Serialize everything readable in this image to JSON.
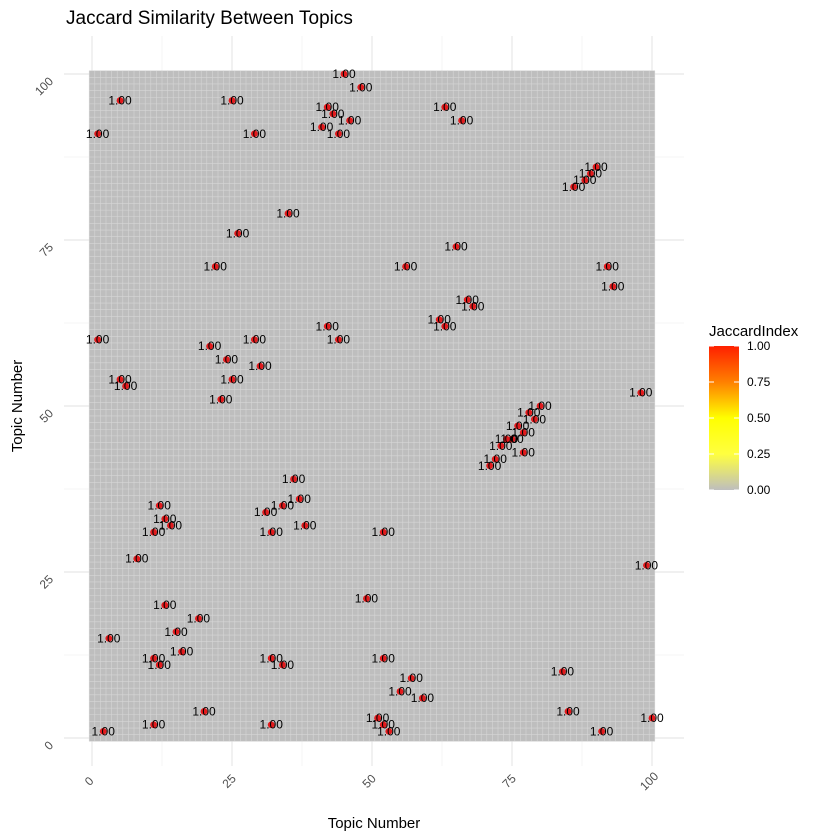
{
  "chart_data": {
    "type": "heatmap",
    "title": "Jaccard Similarity Between Topics",
    "xlabel": "Topic Number",
    "ylabel": "Topic Number",
    "xlim": [
      0,
      100
    ],
    "ylim": [
      0,
      100
    ],
    "x_ticks": [
      "0",
      "25",
      "50",
      "75",
      "100"
    ],
    "y_ticks": [
      "0",
      "25",
      "50",
      "75",
      "100"
    ],
    "grid": true,
    "background_color": "#bebebe",
    "point_color": "#e31a1c",
    "legend": {
      "title": "JaccardIndex",
      "position": "right",
      "labels": [
        "1.00",
        "0.75",
        "0.50",
        "0.25",
        "0.00"
      ],
      "colors": [
        "#ff2000",
        "#ff8000",
        "#ffff00",
        "#ffff40",
        "#bebebe"
      ]
    },
    "points": [
      {
        "x": 45,
        "y": 100,
        "label": "1.00"
      },
      {
        "x": 48,
        "y": 98,
        "label": "1.00"
      },
      {
        "x": 5,
        "y": 96,
        "label": "1.00"
      },
      {
        "x": 25,
        "y": 96,
        "label": "1.00"
      },
      {
        "x": 42,
        "y": 95,
        "label": "1.00"
      },
      {
        "x": 63,
        "y": 95,
        "label": "1.00"
      },
      {
        "x": 43,
        "y": 94,
        "label": "1.00"
      },
      {
        "x": 46,
        "y": 93,
        "label": "1.00"
      },
      {
        "x": 66,
        "y": 93,
        "label": "1.00"
      },
      {
        "x": 41,
        "y": 92,
        "label": "1.00"
      },
      {
        "x": 1,
        "y": 91,
        "label": "1.00"
      },
      {
        "x": 29,
        "y": 91,
        "label": "1.00"
      },
      {
        "x": 44,
        "y": 91,
        "label": "1.00"
      },
      {
        "x": 90,
        "y": 86,
        "label": "1.00"
      },
      {
        "x": 89,
        "y": 85,
        "label": "1.00"
      },
      {
        "x": 88,
        "y": 84,
        "label": "1.00"
      },
      {
        "x": 86,
        "y": 83,
        "label": "1.00"
      },
      {
        "x": 35,
        "y": 79,
        "label": "1.00"
      },
      {
        "x": 26,
        "y": 76,
        "label": "1.00"
      },
      {
        "x": 65,
        "y": 74,
        "label": "1.00"
      },
      {
        "x": 22,
        "y": 71,
        "label": "1.00"
      },
      {
        "x": 56,
        "y": 71,
        "label": "1.00"
      },
      {
        "x": 92,
        "y": 71,
        "label": "1.00"
      },
      {
        "x": 93,
        "y": 68,
        "label": "1.00"
      },
      {
        "x": 67,
        "y": 66,
        "label": "1.00"
      },
      {
        "x": 68,
        "y": 65,
        "label": "1.00"
      },
      {
        "x": 62,
        "y": 63,
        "label": "1.00"
      },
      {
        "x": 63,
        "y": 62,
        "label": "1.00"
      },
      {
        "x": 42,
        "y": 62,
        "label": "1.00"
      },
      {
        "x": 1,
        "y": 60,
        "label": "1.00"
      },
      {
        "x": 29,
        "y": 60,
        "label": "1.00"
      },
      {
        "x": 44,
        "y": 60,
        "label": "1.00"
      },
      {
        "x": 21,
        "y": 59,
        "label": "1.00"
      },
      {
        "x": 24,
        "y": 57,
        "label": "1.00"
      },
      {
        "x": 30,
        "y": 56,
        "label": "1.00"
      },
      {
        "x": 5,
        "y": 54,
        "label": "1.00"
      },
      {
        "x": 25,
        "y": 54,
        "label": "1.00"
      },
      {
        "x": 6,
        "y": 53,
        "label": "1.00"
      },
      {
        "x": 98,
        "y": 52,
        "label": "1.00"
      },
      {
        "x": 23,
        "y": 51,
        "label": "1.00"
      },
      {
        "x": 80,
        "y": 50,
        "label": "1.00"
      },
      {
        "x": 78,
        "y": 49,
        "label": "1.00"
      },
      {
        "x": 79,
        "y": 48,
        "label": "1.00"
      },
      {
        "x": 76,
        "y": 47,
        "label": "1.00"
      },
      {
        "x": 77,
        "y": 46,
        "label": "1.00"
      },
      {
        "x": 74,
        "y": 45,
        "label": "1.00"
      },
      {
        "x": 75,
        "y": 45,
        "label": "1.00"
      },
      {
        "x": 73,
        "y": 44,
        "label": "1.00"
      },
      {
        "x": 77,
        "y": 43,
        "label": "1.00"
      },
      {
        "x": 72,
        "y": 42,
        "label": "1.00"
      },
      {
        "x": 71,
        "y": 41,
        "label": "1.00"
      },
      {
        "x": 36,
        "y": 39,
        "label": "1.00"
      },
      {
        "x": 37,
        "y": 36,
        "label": "1.00"
      },
      {
        "x": 12,
        "y": 35,
        "label": "1.00"
      },
      {
        "x": 34,
        "y": 35,
        "label": "1.00"
      },
      {
        "x": 31,
        "y": 34,
        "label": "1.00"
      },
      {
        "x": 13,
        "y": 33,
        "label": "1.00"
      },
      {
        "x": 14,
        "y": 32,
        "label": "1.00"
      },
      {
        "x": 38,
        "y": 32,
        "label": "1.00"
      },
      {
        "x": 11,
        "y": 31,
        "label": "1.00"
      },
      {
        "x": 32,
        "y": 31,
        "label": "1.00"
      },
      {
        "x": 52,
        "y": 31,
        "label": "1.00"
      },
      {
        "x": 8,
        "y": 27,
        "label": "1.00"
      },
      {
        "x": 99,
        "y": 26,
        "label": "1.00"
      },
      {
        "x": 49,
        "y": 21,
        "label": "1.00"
      },
      {
        "x": 13,
        "y": 20,
        "label": "1.00"
      },
      {
        "x": 19,
        "y": 18,
        "label": "1.00"
      },
      {
        "x": 15,
        "y": 16,
        "label": "1.00"
      },
      {
        "x": 3,
        "y": 15,
        "label": "1.00"
      },
      {
        "x": 16,
        "y": 13,
        "label": "1.00"
      },
      {
        "x": 11,
        "y": 12,
        "label": "1.00"
      },
      {
        "x": 32,
        "y": 12,
        "label": "1.00"
      },
      {
        "x": 52,
        "y": 12,
        "label": "1.00"
      },
      {
        "x": 12,
        "y": 11,
        "label": "1.00"
      },
      {
        "x": 34,
        "y": 11,
        "label": "1.00"
      },
      {
        "x": 84,
        "y": 10,
        "label": "1.00"
      },
      {
        "x": 57,
        "y": 9,
        "label": "1.00"
      },
      {
        "x": 55,
        "y": 7,
        "label": "1.00"
      },
      {
        "x": 59,
        "y": 6,
        "label": "1.00"
      },
      {
        "x": 20,
        "y": 4,
        "label": "1.00"
      },
      {
        "x": 85,
        "y": 4,
        "label": "1.00"
      },
      {
        "x": 51,
        "y": 3,
        "label": "1.00"
      },
      {
        "x": 100,
        "y": 3,
        "label": "1.00"
      },
      {
        "x": 11,
        "y": 2,
        "label": "1.00"
      },
      {
        "x": 32,
        "y": 2,
        "label": "1.00"
      },
      {
        "x": 52,
        "y": 2,
        "label": "1.00"
      },
      {
        "x": 2,
        "y": 1,
        "label": "1.00"
      },
      {
        "x": 53,
        "y": 1,
        "label": "1.00"
      },
      {
        "x": 91,
        "y": 1,
        "label": "1.00"
      }
    ]
  }
}
